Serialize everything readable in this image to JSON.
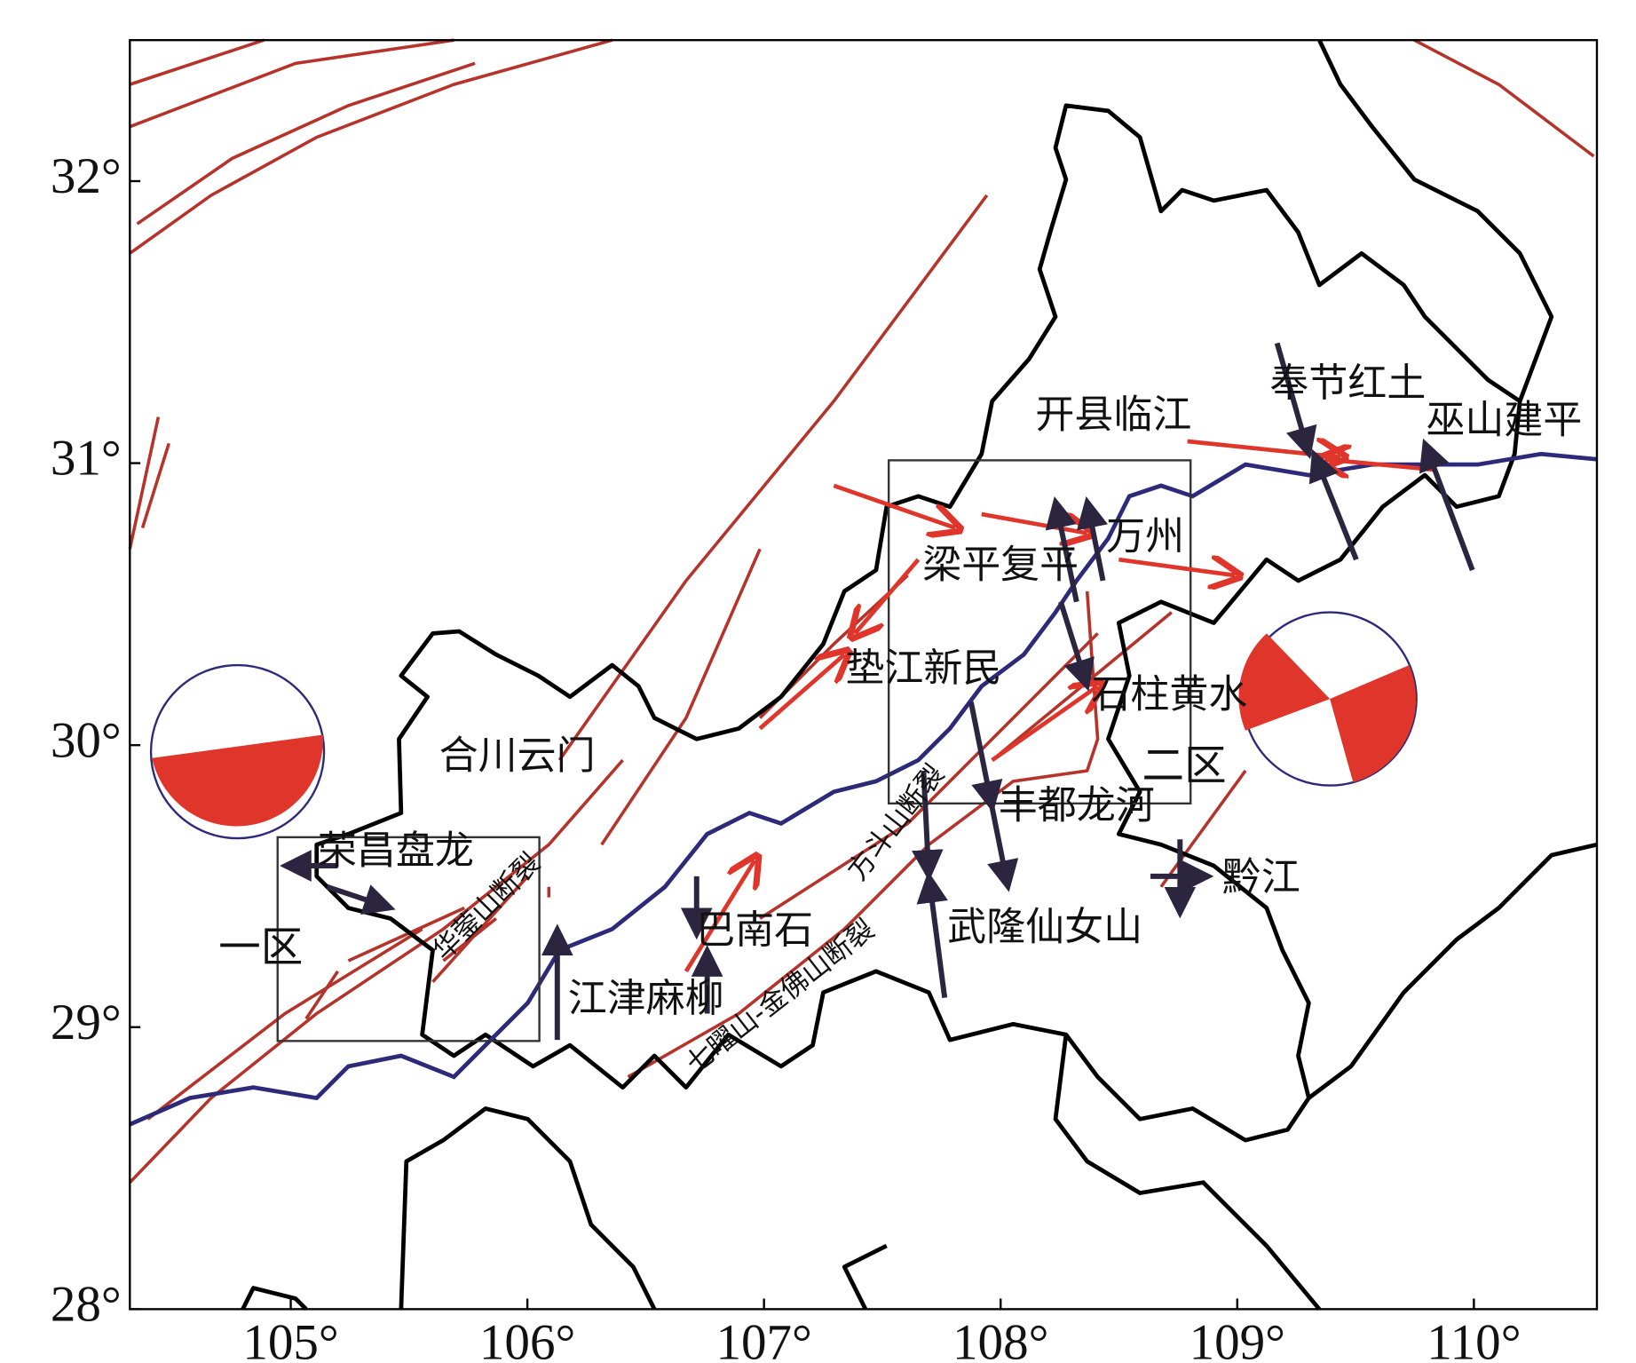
{
  "axes": {
    "xlim": [
      104.32,
      110.52
    ],
    "ylim": [
      28,
      32.5
    ],
    "xticks": [
      {
        "value": 105,
        "label": "105°"
      },
      {
        "value": 106,
        "label": "106°"
      },
      {
        "value": 107,
        "label": "107°"
      },
      {
        "value": 108,
        "label": "108°"
      },
      {
        "value": 109,
        "label": "109°"
      },
      {
        "value": 110,
        "label": "110°"
      }
    ],
    "yticks": [
      {
        "value": 28,
        "label": "28°"
      },
      {
        "value": 29,
        "label": "29°"
      },
      {
        "value": 30,
        "label": "30°"
      },
      {
        "value": 31,
        "label": "31°"
      },
      {
        "value": 32,
        "label": "32°"
      }
    ]
  },
  "stations": [
    "开县临江",
    "奉节红土",
    "巫山建平",
    "万州",
    "梁平复平",
    "垫江新民",
    "石柱黄水",
    "合川云门",
    "丰都龙河",
    "荣昌盘龙",
    "黔江",
    "巴南石",
    "武隆仙女山",
    "江津麻柳"
  ],
  "faults": [
    "华蓥山断裂",
    "方斗山断裂",
    "七曜山-金佛山断裂"
  ],
  "zones": [
    "一区",
    "二区"
  ]
}
